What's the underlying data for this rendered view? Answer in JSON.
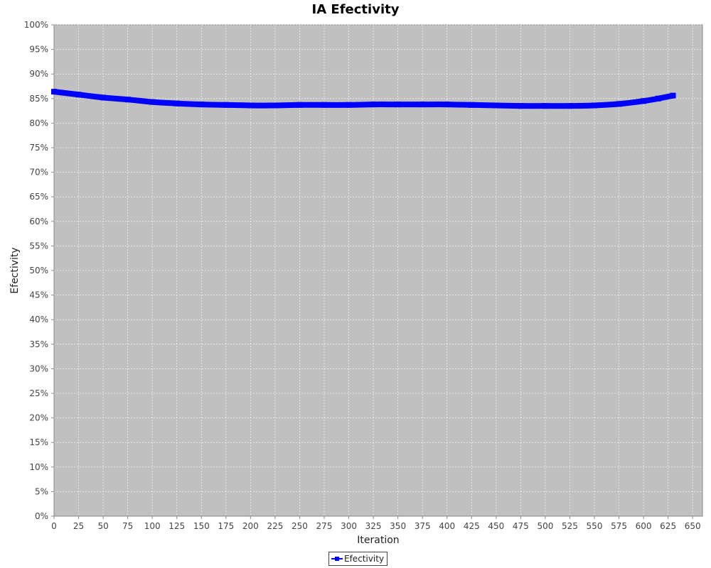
{
  "chart_data": {
    "type": "line",
    "title": "IA Efectivity",
    "xlabel": "Iteration",
    "ylabel": "Efectivity",
    "xlim": [
      0,
      660
    ],
    "ylim": [
      0,
      100
    ],
    "x_ticks": [
      0,
      25,
      50,
      75,
      100,
      125,
      150,
      175,
      200,
      225,
      250,
      275,
      300,
      325,
      350,
      375,
      400,
      425,
      450,
      475,
      500,
      525,
      550,
      575,
      600,
      625,
      650
    ],
    "y_ticks": [
      0,
      5,
      10,
      15,
      20,
      25,
      30,
      35,
      40,
      45,
      50,
      55,
      60,
      65,
      70,
      75,
      80,
      85,
      90,
      95,
      100
    ],
    "y_tick_labels": [
      "0%",
      "5%",
      "10%",
      "15%",
      "20%",
      "25%",
      "30%",
      "35%",
      "40%",
      "45%",
      "50%",
      "55%",
      "60%",
      "65%",
      "70%",
      "75%",
      "80%",
      "85%",
      "90%",
      "95%",
      "100%"
    ],
    "grid": true,
    "legend_position": "bottom-center",
    "series": [
      {
        "name": "Efectivity",
        "color": "#0000ff",
        "x": [
          0,
          25,
          50,
          75,
          100,
          125,
          150,
          175,
          200,
          225,
          250,
          275,
          300,
          325,
          350,
          375,
          400,
          425,
          450,
          475,
          500,
          525,
          550,
          575,
          600,
          615,
          630
        ],
        "values": [
          86.4,
          85.8,
          85.2,
          84.8,
          84.3,
          84.0,
          83.8,
          83.7,
          83.6,
          83.6,
          83.7,
          83.7,
          83.7,
          83.8,
          83.8,
          83.8,
          83.8,
          83.7,
          83.6,
          83.5,
          83.5,
          83.5,
          83.6,
          83.9,
          84.5,
          85.0,
          85.6
        ]
      }
    ]
  },
  "colors": {
    "plot_background": "#c0c0c0",
    "gridline": "#ffffff",
    "series": "#0000ff"
  }
}
